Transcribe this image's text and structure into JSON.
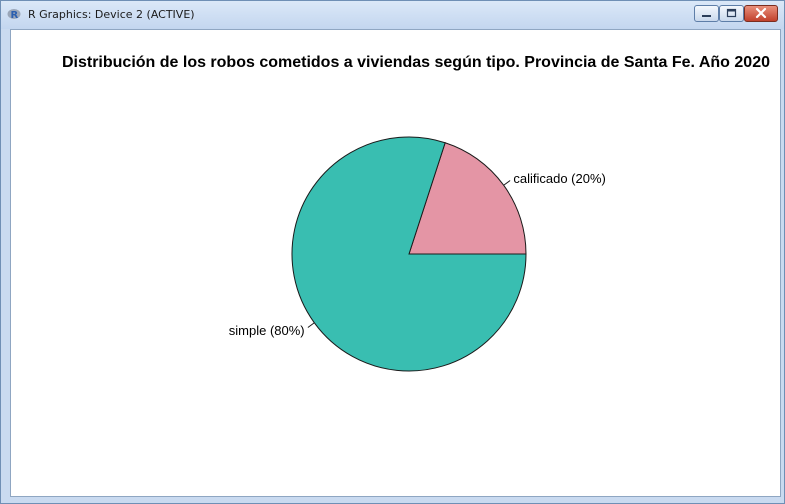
{
  "window": {
    "title": "R Graphics: Device 2 (ACTIVE)",
    "icon": "r-logo-icon",
    "controls": [
      "minimize-icon",
      "maximize-icon",
      "close-icon"
    ]
  },
  "chart_data": {
    "type": "pie",
    "title": "Distribución de los robos cometidos a viviendas según tipo. Provincia de Santa Fe. Año 2020",
    "categories": [
      "calificado",
      "simple"
    ],
    "values": [
      20,
      80
    ],
    "labels": [
      "calificado (20%)",
      "simple (80%)"
    ],
    "colors": [
      "#E495A5",
      "#39BEB1"
    ],
    "border_color": "#1a1a1a",
    "start_angle_deg": 0,
    "direction": "counterclockwise"
  }
}
